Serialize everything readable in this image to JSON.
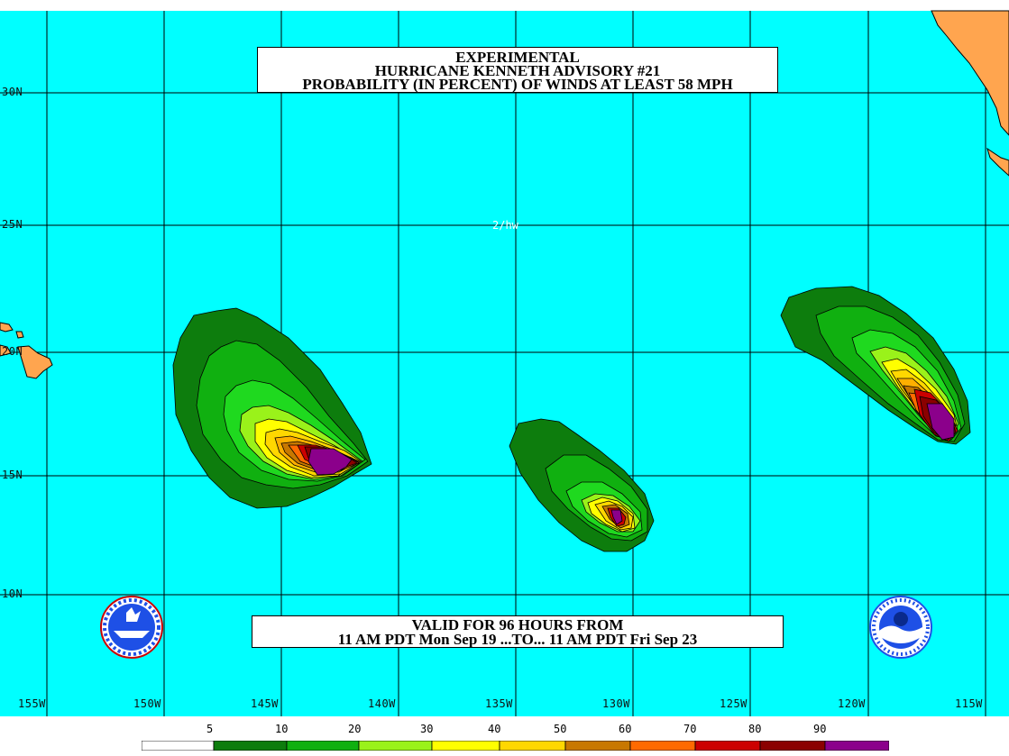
{
  "title": {
    "line1": "EXPERIMENTAL",
    "line2": "HURRICANE KENNETH ADVISORY #21",
    "line3": "PROBABILITY (IN PERCENT) OF WINDS AT LEAST 58 MPH"
  },
  "validity": {
    "line1": "VALID FOR 96 HOURS FROM",
    "line2": "11 AM PDT Mon Sep 19 ...TO... 11 AM PDT Fri Sep 23"
  },
  "center_tag": "2/hw",
  "latitude_labels": [
    "30N",
    "25N",
    "20N",
    "15N",
    "10N"
  ],
  "longitude_labels": [
    "155W",
    "150W",
    "145W",
    "140W",
    "135W",
    "130W",
    "125W",
    "120W",
    "115W"
  ],
  "legend": {
    "thresholds": [
      "5",
      "10",
      "20",
      "30",
      "40",
      "50",
      "60",
      "70",
      "80",
      "90"
    ],
    "colors": [
      "#ffffff",
      "#0d7d0d",
      "#10b010",
      "#1fd91f",
      "#9af21a",
      "#ffff00",
      "#ffd700",
      "#ffaf00",
      "#c87800",
      "#ff6a00",
      "#cc0000",
      "#8b0000",
      "#8b008b"
    ]
  },
  "colors": {
    "ocean": "#00ffff",
    "land": "#ffa54f",
    "grid": "#000000"
  },
  "logos": {
    "left": "nws-logo-icon",
    "right": "noaa-logo-icon"
  }
}
